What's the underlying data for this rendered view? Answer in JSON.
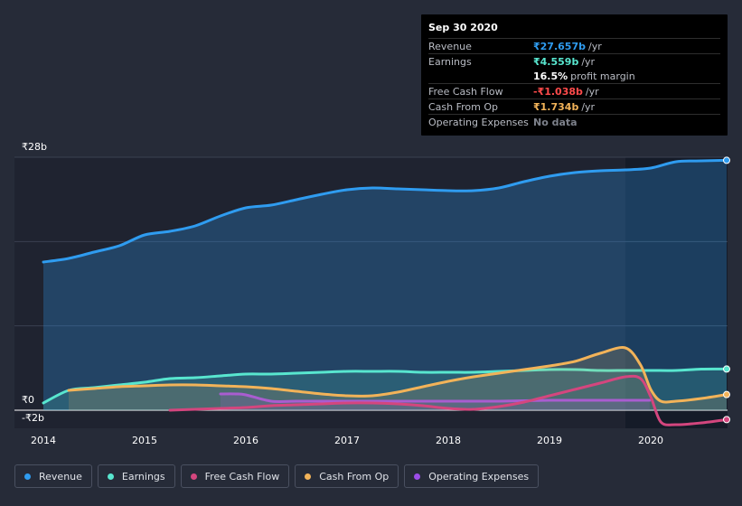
{
  "tooltip": {
    "date": "Sep 30 2020",
    "rows": [
      {
        "label": "Revenue",
        "value": "₹27.657b",
        "unit": "/yr",
        "color": "#2f9cf0"
      },
      {
        "label": "Earnings",
        "value": "₹4.559b",
        "unit": "/yr",
        "color": "#58e6cf"
      },
      {
        "label": "",
        "value": "16.5%",
        "unit": "profit margin",
        "color": "#ffffff"
      },
      {
        "label": "Free Cash Flow",
        "value": "-₹1.038b",
        "unit": "/yr",
        "color": "#ff4b4b"
      },
      {
        "label": "Cash From Op",
        "value": "₹1.734b",
        "unit": "/yr",
        "color": "#f2b359"
      },
      {
        "label": "Operating Expenses",
        "value": "No data",
        "unit": "",
        "color": "#7d818b"
      }
    ]
  },
  "chart_data": {
    "type": "line",
    "title": "",
    "xlabel": "",
    "ylabel": "",
    "ylim": [
      -2,
      28
    ],
    "y_tick_labels": [
      "₹28b",
      "₹0",
      "-₹2b"
    ],
    "y_ticks": [
      28,
      0,
      -2
    ],
    "x_tick_labels": [
      "2014",
      "2015",
      "2016",
      "2017",
      "2018",
      "2019",
      "2020"
    ],
    "x_ticks": [
      2014,
      2015,
      2016,
      2017,
      2018,
      2019,
      2020
    ],
    "xlim": [
      2013.7,
      2020.77
    ],
    "highlight_from": 2019.75,
    "series": [
      {
        "name": "Revenue",
        "color": "#2f9cf0",
        "fill": true,
        "x": [
          2014.0,
          2014.25,
          2014.5,
          2014.75,
          2015.0,
          2015.25,
          2015.5,
          2015.75,
          2016.0,
          2016.25,
          2016.5,
          2016.75,
          2017.0,
          2017.25,
          2017.5,
          2017.75,
          2018.0,
          2018.25,
          2018.5,
          2018.75,
          2019.0,
          2019.25,
          2019.5,
          2019.75,
          2020.0,
          2020.25,
          2020.5,
          2020.75
        ],
        "values": [
          16.4,
          16.8,
          17.5,
          18.2,
          19.4,
          19.8,
          20.4,
          21.5,
          22.4,
          22.7,
          23.3,
          23.9,
          24.4,
          24.6,
          24.5,
          24.4,
          24.3,
          24.3,
          24.6,
          25.3,
          25.9,
          26.3,
          26.5,
          26.6,
          26.8,
          27.5,
          27.6,
          27.657
        ]
      },
      {
        "name": "Earnings",
        "color": "#58e6cf",
        "fill": true,
        "x": [
          2014.0,
          2014.25,
          2014.5,
          2014.75,
          2015.0,
          2015.25,
          2015.5,
          2015.75,
          2016.0,
          2016.25,
          2016.5,
          2016.75,
          2017.0,
          2017.25,
          2017.5,
          2017.75,
          2018.0,
          2018.25,
          2018.5,
          2018.75,
          2019.0,
          2019.25,
          2019.5,
          2019.75,
          2020.0,
          2020.25,
          2020.5,
          2020.75
        ],
        "values": [
          0.8,
          2.2,
          2.5,
          2.8,
          3.1,
          3.5,
          3.6,
          3.8,
          4.0,
          4.0,
          4.1,
          4.2,
          4.3,
          4.3,
          4.3,
          4.2,
          4.2,
          4.2,
          4.3,
          4.4,
          4.5,
          4.5,
          4.4,
          4.4,
          4.4,
          4.4,
          4.55,
          4.559
        ]
      },
      {
        "name": "Free Cash Flow",
        "color": "#d4467e",
        "fill": false,
        "x": [
          2015.25,
          2015.5,
          2015.75,
          2016.0,
          2016.25,
          2016.5,
          2016.75,
          2017.0,
          2017.25,
          2017.5,
          2017.75,
          2018.0,
          2018.25,
          2018.5,
          2018.75,
          2019.0,
          2019.25,
          2019.5,
          2019.75,
          2019.9,
          2020.0,
          2020.1,
          2020.25,
          2020.5,
          2020.75
        ],
        "values": [
          0.0,
          0.1,
          0.2,
          0.3,
          0.5,
          0.6,
          0.7,
          0.8,
          0.8,
          0.7,
          0.5,
          0.2,
          0.1,
          0.4,
          0.9,
          1.6,
          2.3,
          3.0,
          3.7,
          3.5,
          1.5,
          -1.3,
          -1.6,
          -1.4,
          -1.038
        ]
      },
      {
        "name": "Cash From Op",
        "color": "#f2b359",
        "fill": true,
        "x": [
          2014.25,
          2014.5,
          2014.75,
          2015.0,
          2015.25,
          2015.5,
          2015.75,
          2016.0,
          2016.25,
          2016.5,
          2016.75,
          2017.0,
          2017.25,
          2017.5,
          2017.75,
          2018.0,
          2018.25,
          2018.5,
          2018.75,
          2019.0,
          2019.25,
          2019.5,
          2019.75,
          2019.9,
          2020.0,
          2020.1,
          2020.25,
          2020.5,
          2020.75
        ],
        "values": [
          2.2,
          2.4,
          2.6,
          2.7,
          2.8,
          2.8,
          2.7,
          2.6,
          2.4,
          2.1,
          1.8,
          1.6,
          1.6,
          2.0,
          2.6,
          3.2,
          3.7,
          4.1,
          4.5,
          4.9,
          5.4,
          6.3,
          6.9,
          5.0,
          2.3,
          1.0,
          1.0,
          1.3,
          1.734
        ]
      },
      {
        "name": "Operating Expenses",
        "color": "#9b4de8",
        "fill": true,
        "x": [
          2015.75,
          2015.9,
          2016.0,
          2016.25,
          2016.5,
          2016.75,
          2017.0,
          2017.25,
          2017.5,
          2017.75,
          2018.0,
          2018.25,
          2018.5,
          2018.75,
          2019.0,
          2019.25,
          2019.5,
          2019.75,
          2019.99
        ],
        "values": [
          1.8,
          1.8,
          1.7,
          1.0,
          1.0,
          1.0,
          1.0,
          1.0,
          1.0,
          1.0,
          1.0,
          1.0,
          1.0,
          1.05,
          1.1,
          1.1,
          1.1,
          1.1,
          1.1
        ]
      }
    ]
  },
  "legend": [
    {
      "label": "Revenue",
      "color": "#2f9cf0"
    },
    {
      "label": "Earnings",
      "color": "#58e6cf"
    },
    {
      "label": "Free Cash Flow",
      "color": "#d4467e"
    },
    {
      "label": "Cash From Op",
      "color": "#f2b359"
    },
    {
      "label": "Operating Expenses",
      "color": "#9b4de8"
    }
  ]
}
